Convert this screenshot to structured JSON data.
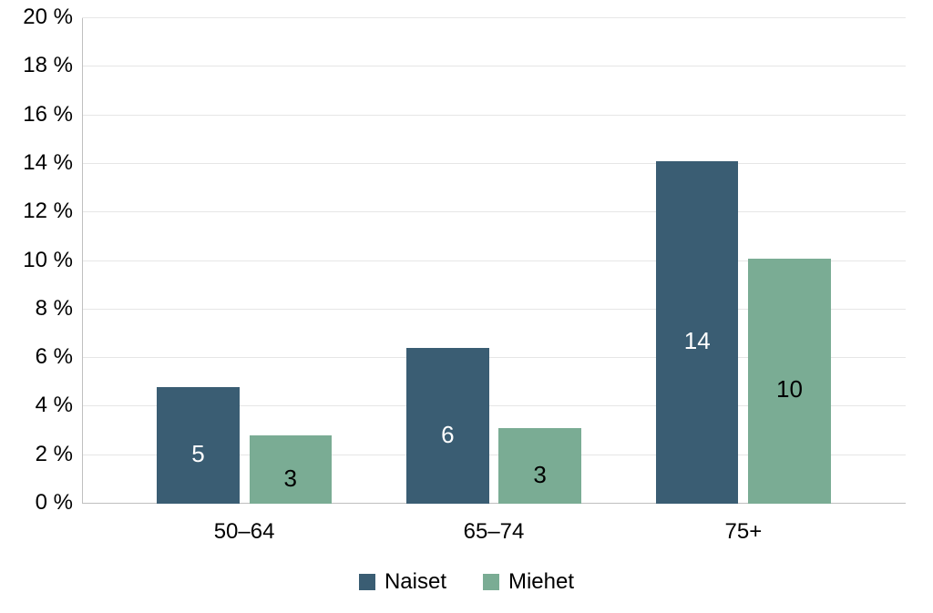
{
  "chart": {
    "type": "bar",
    "categories": [
      "50–64",
      "65–74",
      "75+"
    ],
    "series": [
      {
        "name": "Naiset",
        "color": "#3a5d73",
        "label_color": "#ffffff",
        "values": [
          4.8,
          6.4,
          14.1
        ],
        "value_labels": [
          "5",
          "6",
          "14"
        ]
      },
      {
        "name": "Miehet",
        "color": "#7aac94",
        "label_color": "#000000",
        "values": [
          2.8,
          3.1,
          10.1
        ],
        "value_labels": [
          "3",
          "3",
          "10"
        ]
      }
    ],
    "ylim": [
      0,
      20
    ],
    "ytick_step": 2,
    "y_suffix": " %",
    "grid_color": "#e6e6e6",
    "axis_color": "#bfbfbf",
    "background_color": "#ffffff",
    "tick_fontsize": 24,
    "value_label_fontsize": 26,
    "legend_fontsize": 24,
    "bar_width_pct": 10,
    "bar_gap_pct": 1.2,
    "group_gap_pct": 12
  }
}
